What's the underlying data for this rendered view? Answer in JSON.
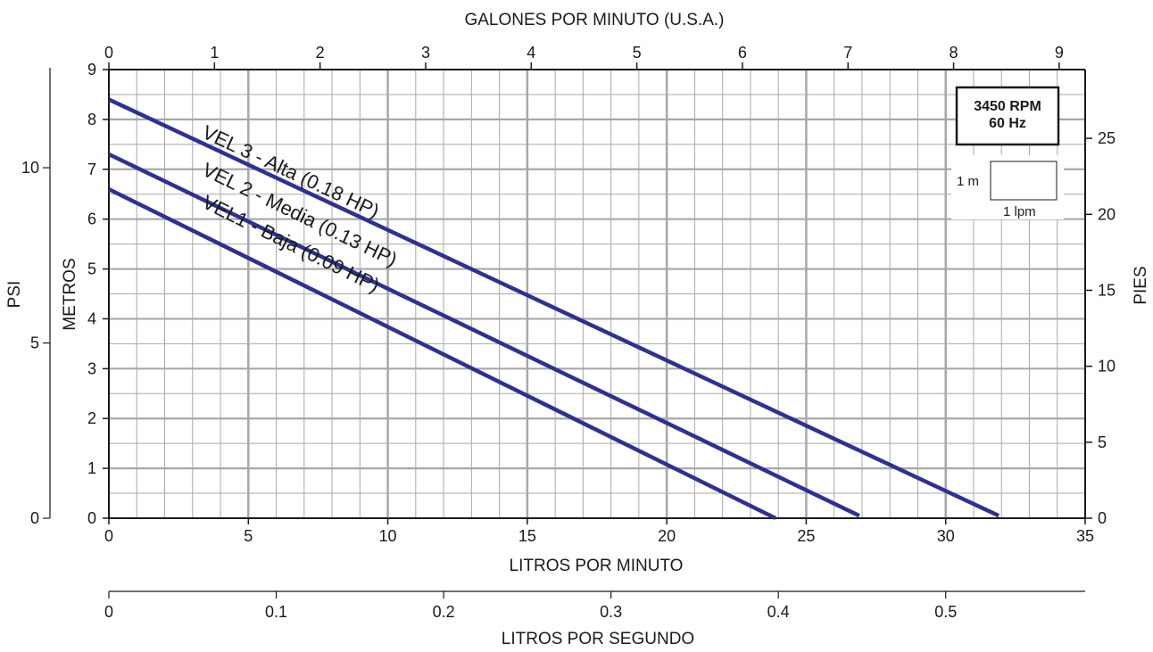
{
  "chart_data": {
    "type": "line",
    "x_label": "LITROS POR MINUTO",
    "y_label": "METROS",
    "xlim": [
      0,
      35
    ],
    "ylim": [
      0,
      9
    ],
    "x_ticks": [
      "0",
      "5",
      "10",
      "15",
      "20",
      "25",
      "30",
      "35"
    ],
    "y_ticks": [
      "0",
      "1",
      "2",
      "3",
      "4",
      "5",
      "6",
      "7",
      "8",
      "9"
    ],
    "grid": true,
    "secondary_axes": {
      "top": {
        "label": "GALONES POR MINUTO (U.S.A.)",
        "ticks": [
          "0",
          "1",
          "2",
          "3",
          "4",
          "5",
          "6",
          "7",
          "8",
          "9"
        ]
      },
      "right": {
        "label": "PIES",
        "ticks": [
          "0",
          "5",
          "10",
          "15",
          "20",
          "25"
        ]
      },
      "left_outer": {
        "label": "PSI",
        "ticks": [
          "0",
          "5",
          "10"
        ]
      },
      "bottom_outer": {
        "label": "LITROS POR SEGUNDO",
        "ticks": [
          "0",
          "0.1",
          "0.2",
          "0.3",
          "0.4",
          "0.5"
        ]
      }
    },
    "series": [
      {
        "name": "VEL 3 - Alta (0.18 HP)",
        "x": [
          0,
          31.9
        ],
        "y": [
          8.4,
          0.05
        ]
      },
      {
        "name": "VEL 2 - Media (0.13 HP)",
        "x": [
          0,
          26.9
        ],
        "y": [
          7.3,
          0.05
        ]
      },
      {
        "name": "VEL1 - Baja (0.09 HP)",
        "x": [
          0,
          23.9
        ],
        "y": [
          6.6,
          0.0
        ]
      }
    ],
    "annotations": {
      "rating_line1": "3450 RPM",
      "rating_line2": "60 Hz",
      "scale_y": "1 m",
      "scale_x": "1 lpm"
    },
    "colors": {
      "curve": "#2e3192",
      "grid": "#a8a8a8",
      "axis": "#1a1a1a"
    }
  }
}
